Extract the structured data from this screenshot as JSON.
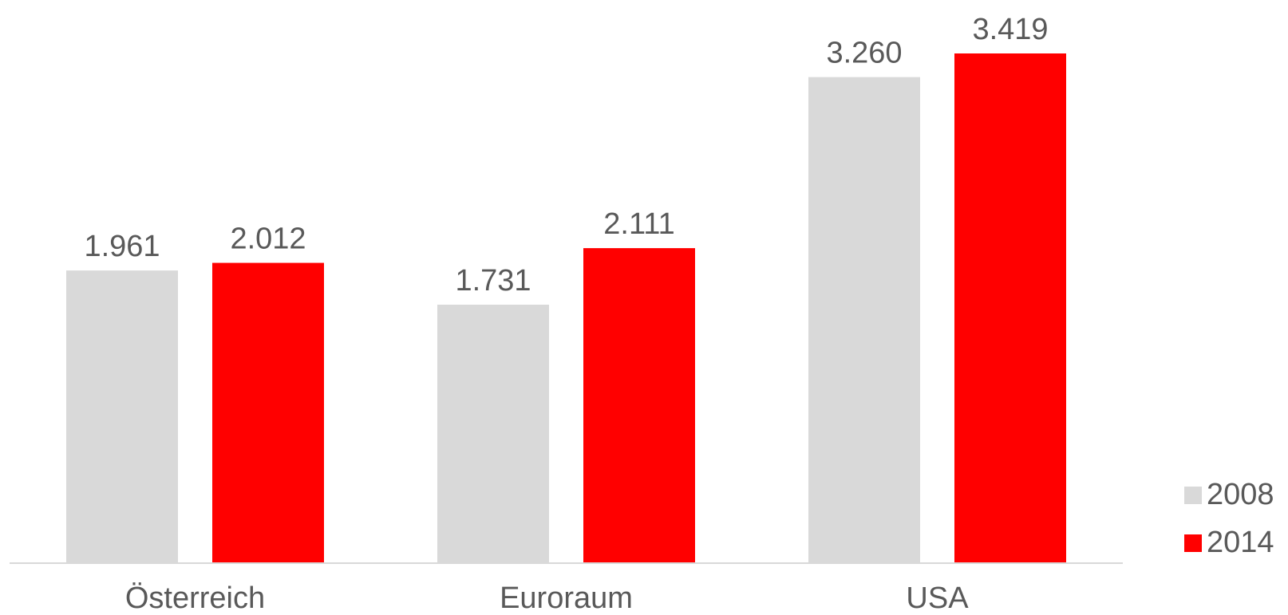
{
  "chart_data": {
    "type": "bar",
    "categories": [
      "Österreich",
      "Euroraum",
      "USA"
    ],
    "series": [
      {
        "name": "2008",
        "values": [
          1.961,
          1.731,
          3.26
        ],
        "labels": [
          "1.961",
          "1.731",
          "3.260"
        ],
        "color": "#d9d9d9"
      },
      {
        "name": "2014",
        "values": [
          2.012,
          2.111,
          3.419
        ],
        "labels": [
          "2.012",
          "2.111",
          "3.419"
        ],
        "color": "#ff0000"
      }
    ],
    "ylim": [
      0,
      3.419
    ],
    "legend_position": "bottom-right",
    "grid": false,
    "axis_color": "#d9d9d9"
  }
}
